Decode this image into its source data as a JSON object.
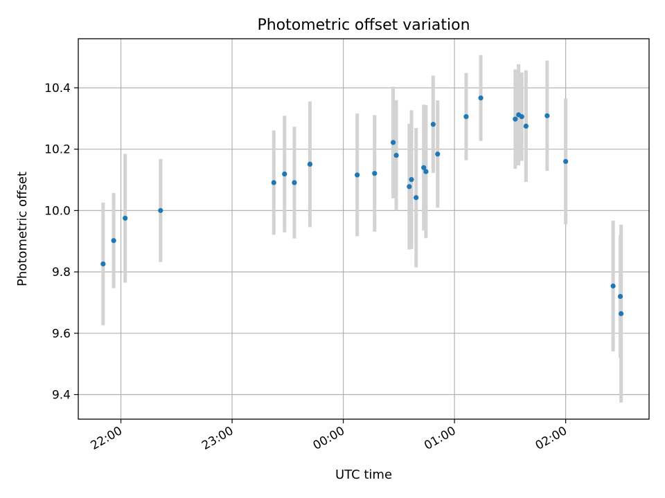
{
  "chart_data": {
    "type": "scatter",
    "title": "Photometric offset variation",
    "xlabel": "UTC time",
    "ylabel": "Photometric offset",
    "x_tick_labels": [
      "22:00",
      "23:00",
      "00:00",
      "01:00",
      "02:00"
    ],
    "x_tick_minutes": [
      0,
      60,
      120,
      180,
      240
    ],
    "xlim_minutes": [
      -23,
      285
    ],
    "y_ticks": [
      9.4,
      9.6,
      9.8,
      10.0,
      10.2,
      10.4
    ],
    "y_tick_labels": [
      "9.4",
      "9.6",
      "9.8",
      "10.0",
      "10.2",
      "10.4"
    ],
    "ylim": [
      9.32,
      10.56
    ],
    "grid": true,
    "colors": {
      "point": "#1f77b4",
      "errorbar": "#d3d3d3"
    },
    "points": [
      {
        "t": -9.6,
        "y": 9.826,
        "err": 0.2
      },
      {
        "t": -3.9,
        "y": 9.902,
        "err": 0.155
      },
      {
        "t": 2.3,
        "y": 9.975,
        "err": 0.21
      },
      {
        "t": 21.4,
        "y": 10.0,
        "err": 0.168
      },
      {
        "t": 82.5,
        "y": 10.091,
        "err": 0.17
      },
      {
        "t": 88.3,
        "y": 10.119,
        "err": 0.19
      },
      {
        "t": 93.6,
        "y": 10.091,
        "err": 0.182
      },
      {
        "t": 102.0,
        "y": 10.151,
        "err": 0.205
      },
      {
        "t": 127.5,
        "y": 10.116,
        "err": 0.2
      },
      {
        "t": 136.9,
        "y": 10.121,
        "err": 0.19
      },
      {
        "t": 146.9,
        "y": 10.222,
        "err": 0.182
      },
      {
        "t": 148.6,
        "y": 10.18,
        "err": 0.18
      },
      {
        "t": 155.6,
        "y": 10.078,
        "err": 0.205
      },
      {
        "t": 156.8,
        "y": 10.101,
        "err": 0.226
      },
      {
        "t": 159.3,
        "y": 10.042,
        "err": 0.227
      },
      {
        "t": 163.4,
        "y": 10.14,
        "err": 0.205
      },
      {
        "t": 164.6,
        "y": 10.127,
        "err": 0.217
      },
      {
        "t": 168.5,
        "y": 10.281,
        "err": 0.159
      },
      {
        "t": 170.9,
        "y": 10.184,
        "err": 0.175
      },
      {
        "t": 186.3,
        "y": 10.306,
        "err": 0.142
      },
      {
        "t": 194.2,
        "y": 10.367,
        "err": 0.14
      },
      {
        "t": 212.8,
        "y": 10.298,
        "err": 0.162
      },
      {
        "t": 214.6,
        "y": 10.312,
        "err": 0.165
      },
      {
        "t": 216.3,
        "y": 10.306,
        "err": 0.144
      },
      {
        "t": 218.6,
        "y": 10.275,
        "err": 0.182
      },
      {
        "t": 230.0,
        "y": 10.309,
        "err": 0.18
      },
      {
        "t": 240.0,
        "y": 10.16,
        "err": 0.205
      },
      {
        "t": 265.6,
        "y": 9.754,
        "err": 0.213
      },
      {
        "t": 269.5,
        "y": 9.72,
        "err": 0.2
      },
      {
        "t": 269.9,
        "y": 9.664,
        "err": 0.29
      }
    ]
  }
}
